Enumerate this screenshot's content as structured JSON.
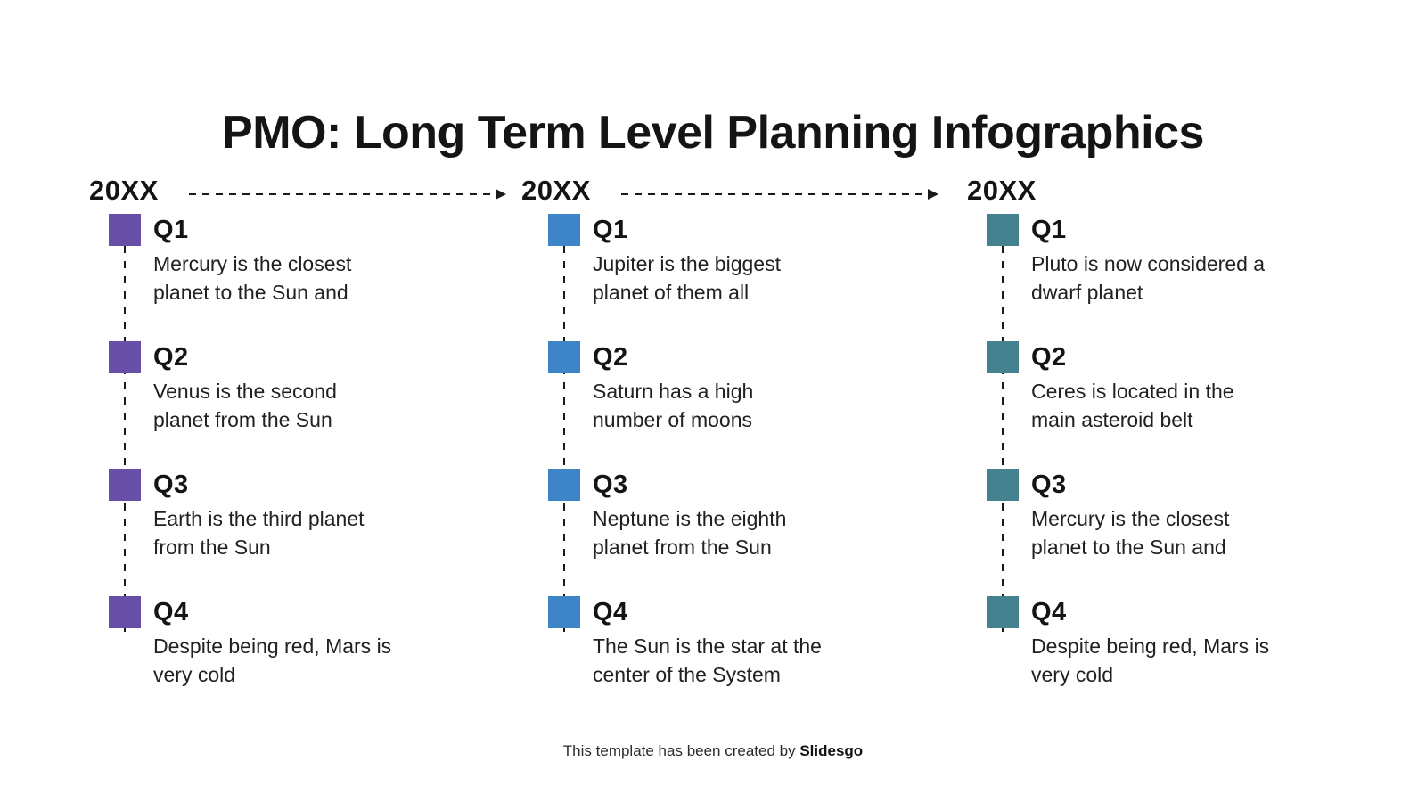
{
  "slide": {
    "title": "PMO: Long Term Level Planning Infographics",
    "footer": {
      "prefix": "This template has been created by ",
      "brand": "Slidesgo"
    }
  },
  "colors": {
    "purple": "#674ea7",
    "blue": "#3d85c6",
    "teal": "#45818e",
    "line": "#1a1a1a"
  },
  "columns": [
    {
      "year": "20XX",
      "accent": "#674ea7",
      "items": [
        {
          "label": "Q1",
          "text": "Mercury is the closest\nplanet to the Sun and"
        },
        {
          "label": "Q2",
          "text": "Venus is the second\nplanet from the Sun"
        },
        {
          "label": "Q3",
          "text": "Earth is the third planet\nfrom the Sun"
        },
        {
          "label": "Q4",
          "text": "Despite being red, Mars is\nvery cold"
        }
      ]
    },
    {
      "year": "20XX",
      "accent": "#3d85c6",
      "items": [
        {
          "label": "Q1",
          "text": "Jupiter is the biggest\nplanet of them all"
        },
        {
          "label": "Q2",
          "text": "Saturn has a high\nnumber of moons"
        },
        {
          "label": "Q3",
          "text": "Neptune is the eighth\nplanet from the Sun"
        },
        {
          "label": "Q4",
          "text": "The Sun is the star at the\ncenter of the System"
        }
      ]
    },
    {
      "year": "20XX",
      "accent": "#45818e",
      "items": [
        {
          "label": "Q1",
          "text": "Pluto is now considered a\ndwarf planet"
        },
        {
          "label": "Q2",
          "text": "Ceres is located in the\nmain asteroid belt"
        },
        {
          "label": "Q3",
          "text": "Mercury is the closest\nplanet to the Sun and"
        },
        {
          "label": "Q4",
          "text": "Despite being red, Mars is\nvery cold"
        }
      ]
    }
  ]
}
